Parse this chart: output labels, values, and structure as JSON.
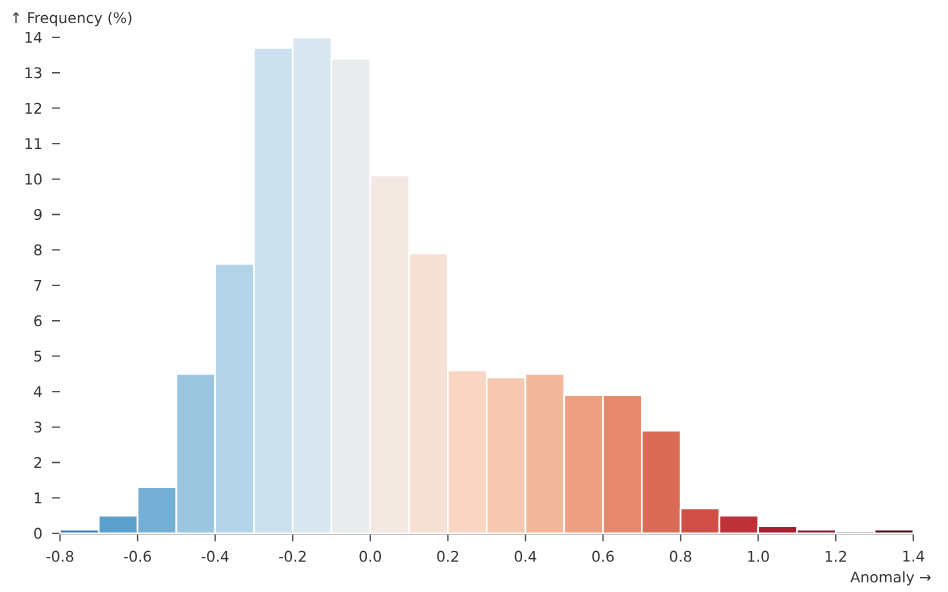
{
  "chart_data": {
    "type": "histogram",
    "xlabel": "Anomaly →",
    "ylabel": "↑ Frequency (%)",
    "bins": [
      -0.8,
      -0.7,
      -0.6,
      -0.5,
      -0.4,
      -0.3,
      -0.2,
      -0.1,
      0.0,
      0.1,
      0.2,
      0.3,
      0.4,
      0.5,
      0.6,
      0.7,
      0.8,
      0.9,
      1.0,
      1.1,
      1.2,
      1.3,
      1.4
    ],
    "values": [
      0.1,
      0.5,
      1.3,
      4.5,
      7.6,
      13.7,
      14.0,
      13.4,
      10.1,
      7.9,
      4.6,
      4.4,
      4.5,
      3.9,
      3.9,
      2.9,
      0.7,
      0.5,
      0.2,
      0.1,
      0,
      0.1
    ],
    "colors": [
      "#3d7fb5",
      "#5ba0cc",
      "#76afd6",
      "#9ac6e0",
      "#b3d4e8",
      "#cde0ed",
      "#d9e7f0",
      "#e9eced",
      "#f3e8e2",
      "#f7e0d4",
      "#f9d6c3",
      "#f6c8b0",
      "#f2b79c",
      "#ec9f83",
      "#e5886c",
      "#da6c56",
      "#cf4e45",
      "#bf3139",
      "#a61e2e",
      "#8d1326",
      "#730b20",
      "#4e0613"
    ],
    "xlim": [
      -0.8,
      1.4
    ],
    "ylim": [
      0,
      14
    ],
    "xticks": [
      -0.8,
      -0.6,
      -0.4,
      -0.2,
      {
        "value": 0.0,
        "label": "0.0"
      },
      0.2,
      0.4,
      0.6,
      0.8,
      {
        "value": 1.0,
        "label": "1.0"
      },
      1.2,
      1.4
    ],
    "yticks": [
      0,
      1,
      2,
      3,
      4,
      5,
      6,
      7,
      8,
      9,
      10,
      11,
      12,
      13,
      14
    ],
    "grid": false
  }
}
